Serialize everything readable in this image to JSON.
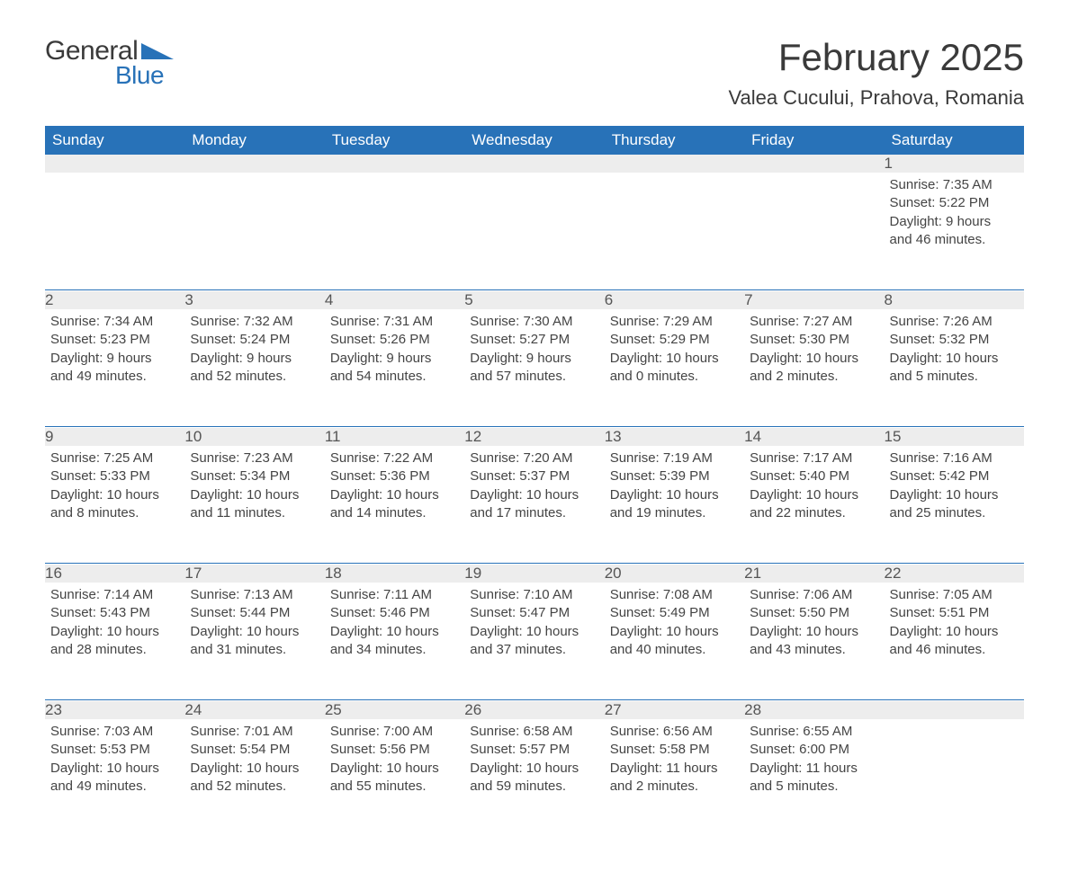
{
  "logo": {
    "text1": "General",
    "text2": "Blue",
    "accent_color": "#2872b8"
  },
  "title": "February 2025",
  "location": "Valea Cucului, Prahova, Romania",
  "header_bg": "#2872b8",
  "header_fg": "#ffffff",
  "daynum_bg": "#ededed",
  "text_color": "#444444",
  "weekdays": [
    "Sunday",
    "Monday",
    "Tuesday",
    "Wednesday",
    "Thursday",
    "Friday",
    "Saturday"
  ],
  "weeks": [
    [
      null,
      null,
      null,
      null,
      null,
      null,
      {
        "n": "1",
        "sr": "Sunrise: 7:35 AM",
        "ss": "Sunset: 5:22 PM",
        "d1": "Daylight: 9 hours",
        "d2": "and 46 minutes."
      }
    ],
    [
      {
        "n": "2",
        "sr": "Sunrise: 7:34 AM",
        "ss": "Sunset: 5:23 PM",
        "d1": "Daylight: 9 hours",
        "d2": "and 49 minutes."
      },
      {
        "n": "3",
        "sr": "Sunrise: 7:32 AM",
        "ss": "Sunset: 5:24 PM",
        "d1": "Daylight: 9 hours",
        "d2": "and 52 minutes."
      },
      {
        "n": "4",
        "sr": "Sunrise: 7:31 AM",
        "ss": "Sunset: 5:26 PM",
        "d1": "Daylight: 9 hours",
        "d2": "and 54 minutes."
      },
      {
        "n": "5",
        "sr": "Sunrise: 7:30 AM",
        "ss": "Sunset: 5:27 PM",
        "d1": "Daylight: 9 hours",
        "d2": "and 57 minutes."
      },
      {
        "n": "6",
        "sr": "Sunrise: 7:29 AM",
        "ss": "Sunset: 5:29 PM",
        "d1": "Daylight: 10 hours",
        "d2": "and 0 minutes."
      },
      {
        "n": "7",
        "sr": "Sunrise: 7:27 AM",
        "ss": "Sunset: 5:30 PM",
        "d1": "Daylight: 10 hours",
        "d2": "and 2 minutes."
      },
      {
        "n": "8",
        "sr": "Sunrise: 7:26 AM",
        "ss": "Sunset: 5:32 PM",
        "d1": "Daylight: 10 hours",
        "d2": "and 5 minutes."
      }
    ],
    [
      {
        "n": "9",
        "sr": "Sunrise: 7:25 AM",
        "ss": "Sunset: 5:33 PM",
        "d1": "Daylight: 10 hours",
        "d2": "and 8 minutes."
      },
      {
        "n": "10",
        "sr": "Sunrise: 7:23 AM",
        "ss": "Sunset: 5:34 PM",
        "d1": "Daylight: 10 hours",
        "d2": "and 11 minutes."
      },
      {
        "n": "11",
        "sr": "Sunrise: 7:22 AM",
        "ss": "Sunset: 5:36 PM",
        "d1": "Daylight: 10 hours",
        "d2": "and 14 minutes."
      },
      {
        "n": "12",
        "sr": "Sunrise: 7:20 AM",
        "ss": "Sunset: 5:37 PM",
        "d1": "Daylight: 10 hours",
        "d2": "and 17 minutes."
      },
      {
        "n": "13",
        "sr": "Sunrise: 7:19 AM",
        "ss": "Sunset: 5:39 PM",
        "d1": "Daylight: 10 hours",
        "d2": "and 19 minutes."
      },
      {
        "n": "14",
        "sr": "Sunrise: 7:17 AM",
        "ss": "Sunset: 5:40 PM",
        "d1": "Daylight: 10 hours",
        "d2": "and 22 minutes."
      },
      {
        "n": "15",
        "sr": "Sunrise: 7:16 AM",
        "ss": "Sunset: 5:42 PM",
        "d1": "Daylight: 10 hours",
        "d2": "and 25 minutes."
      }
    ],
    [
      {
        "n": "16",
        "sr": "Sunrise: 7:14 AM",
        "ss": "Sunset: 5:43 PM",
        "d1": "Daylight: 10 hours",
        "d2": "and 28 minutes."
      },
      {
        "n": "17",
        "sr": "Sunrise: 7:13 AM",
        "ss": "Sunset: 5:44 PM",
        "d1": "Daylight: 10 hours",
        "d2": "and 31 minutes."
      },
      {
        "n": "18",
        "sr": "Sunrise: 7:11 AM",
        "ss": "Sunset: 5:46 PM",
        "d1": "Daylight: 10 hours",
        "d2": "and 34 minutes."
      },
      {
        "n": "19",
        "sr": "Sunrise: 7:10 AM",
        "ss": "Sunset: 5:47 PM",
        "d1": "Daylight: 10 hours",
        "d2": "and 37 minutes."
      },
      {
        "n": "20",
        "sr": "Sunrise: 7:08 AM",
        "ss": "Sunset: 5:49 PM",
        "d1": "Daylight: 10 hours",
        "d2": "and 40 minutes."
      },
      {
        "n": "21",
        "sr": "Sunrise: 7:06 AM",
        "ss": "Sunset: 5:50 PM",
        "d1": "Daylight: 10 hours",
        "d2": "and 43 minutes."
      },
      {
        "n": "22",
        "sr": "Sunrise: 7:05 AM",
        "ss": "Sunset: 5:51 PM",
        "d1": "Daylight: 10 hours",
        "d2": "and 46 minutes."
      }
    ],
    [
      {
        "n": "23",
        "sr": "Sunrise: 7:03 AM",
        "ss": "Sunset: 5:53 PM",
        "d1": "Daylight: 10 hours",
        "d2": "and 49 minutes."
      },
      {
        "n": "24",
        "sr": "Sunrise: 7:01 AM",
        "ss": "Sunset: 5:54 PM",
        "d1": "Daylight: 10 hours",
        "d2": "and 52 minutes."
      },
      {
        "n": "25",
        "sr": "Sunrise: 7:00 AM",
        "ss": "Sunset: 5:56 PM",
        "d1": "Daylight: 10 hours",
        "d2": "and 55 minutes."
      },
      {
        "n": "26",
        "sr": "Sunrise: 6:58 AM",
        "ss": "Sunset: 5:57 PM",
        "d1": "Daylight: 10 hours",
        "d2": "and 59 minutes."
      },
      {
        "n": "27",
        "sr": "Sunrise: 6:56 AM",
        "ss": "Sunset: 5:58 PM",
        "d1": "Daylight: 11 hours",
        "d2": "and 2 minutes."
      },
      {
        "n": "28",
        "sr": "Sunrise: 6:55 AM",
        "ss": "Sunset: 6:00 PM",
        "d1": "Daylight: 11 hours",
        "d2": "and 5 minutes."
      },
      null
    ]
  ]
}
